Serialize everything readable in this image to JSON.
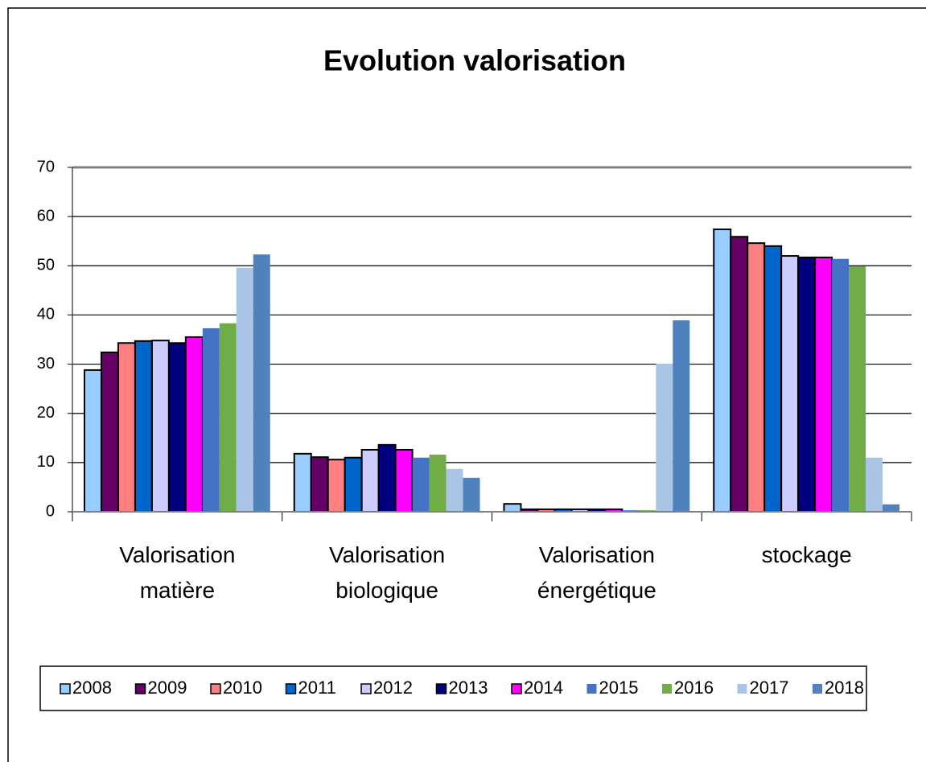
{
  "chart_data": {
    "type": "bar",
    "title": "Evolution valorisation",
    "categories": [
      "Valorisation matière",
      "Valorisation biologique",
      "Valorisation énergétique",
      "stockage"
    ],
    "ylim": [
      0,
      70
    ],
    "yticks": [
      0,
      10,
      20,
      30,
      40,
      50,
      60,
      70
    ],
    "grid": true,
    "legend": "bottom",
    "series": [
      {
        "name": "2008",
        "color": "#99ccff",
        "edgecolor": "#000000",
        "values": [
          28.8,
          11.8,
          1.6,
          57.4
        ]
      },
      {
        "name": "2009",
        "color": "#660066",
        "edgecolor": "#000000",
        "values": [
          32.4,
          11.1,
          0.5,
          55.9
        ]
      },
      {
        "name": "2010",
        "color": "#ff8080",
        "edgecolor": "#000000",
        "values": [
          34.3,
          10.6,
          0.5,
          54.6
        ]
      },
      {
        "name": "2011",
        "color": "#0066cc",
        "edgecolor": "#000000",
        "values": [
          34.7,
          11.0,
          0.5,
          54.0
        ]
      },
      {
        "name": "2012",
        "color": "#ccccff",
        "edgecolor": "#000000",
        "values": [
          34.8,
          12.6,
          0.5,
          52.0
        ]
      },
      {
        "name": "2013",
        "color": "#000080",
        "edgecolor": "#000000",
        "values": [
          34.3,
          13.6,
          0.5,
          51.7
        ]
      },
      {
        "name": "2014",
        "color": "#ff00ff",
        "edgecolor": "#000000",
        "values": [
          35.5,
          12.6,
          0.5,
          51.7
        ]
      },
      {
        "name": "2015",
        "color": "#4472c4",
        "values": [
          37.3,
          11.0,
          0.3,
          51.4
        ]
      },
      {
        "name": "2016",
        "color": "#70ad47",
        "values": [
          38.3,
          11.6,
          0.3,
          49.9
        ]
      },
      {
        "name": "2017",
        "color": "#a9c4e4",
        "values": [
          49.6,
          8.7,
          30.1,
          11.0
        ]
      },
      {
        "name": "2018",
        "color": "#4f81bd",
        "values": [
          52.3,
          6.9,
          38.9,
          1.5
        ]
      }
    ]
  }
}
